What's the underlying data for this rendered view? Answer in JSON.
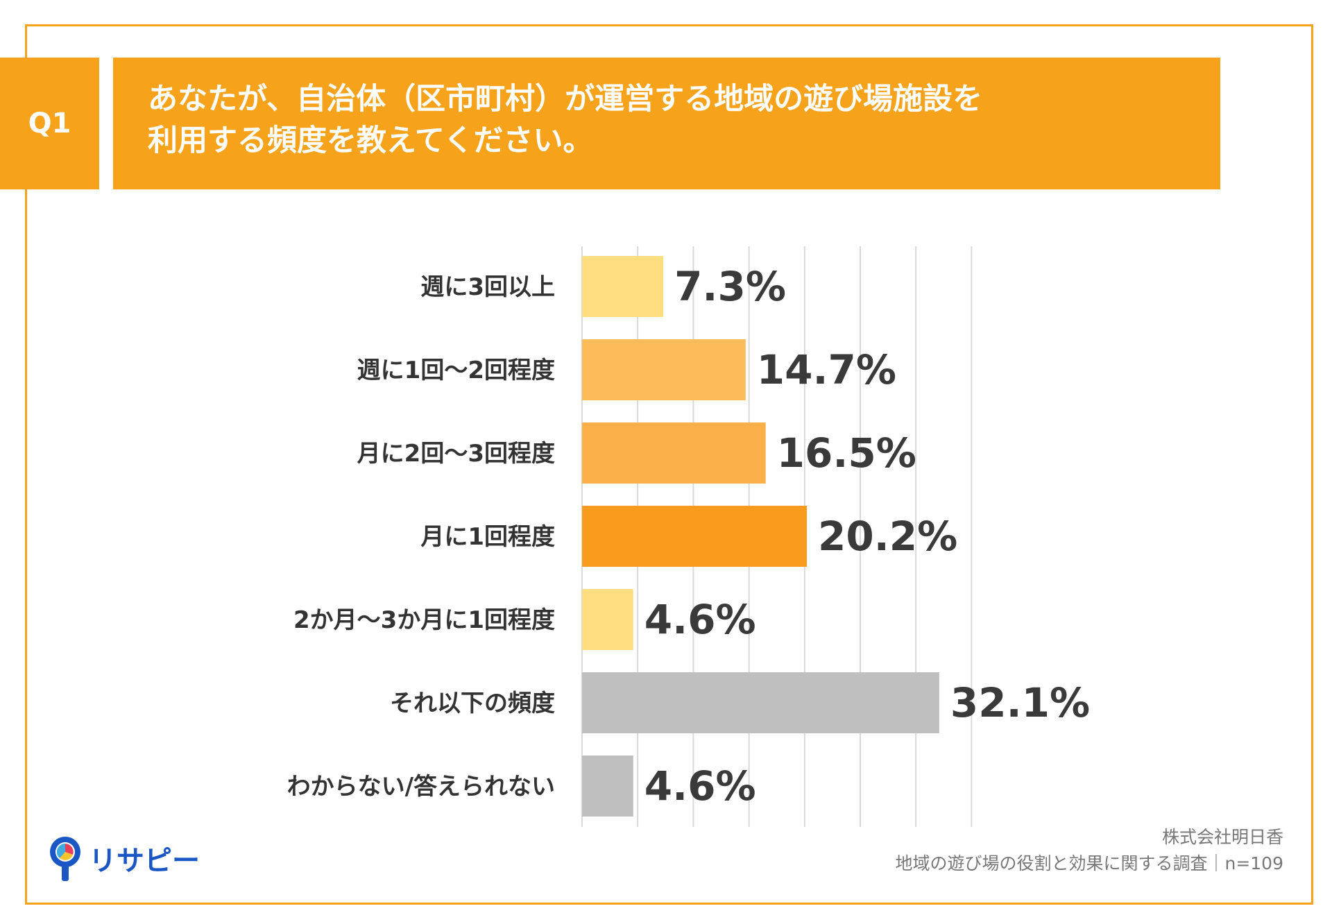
{
  "question": {
    "badge": "Q1",
    "line1": "あなたが、自治体（区市町村）が運営する地域の遊び場施設を",
    "line2": "利用する頻度を教えてください。"
  },
  "chart_data": {
    "type": "bar",
    "orientation": "horizontal",
    "categories": [
      "週に3回以上",
      "週に1回〜2回程度",
      "月に2回〜3回程度",
      "月に1回程度",
      "2か月〜3か月に1回程度",
      "それ以下の頻度",
      "わからない/答えられない"
    ],
    "values": [
      7.3,
      14.7,
      16.5,
      20.2,
      4.6,
      32.1,
      4.6
    ],
    "value_labels": [
      "7.3%",
      "14.7%",
      "16.5%",
      "20.2%",
      "4.6%",
      "32.1%",
      "4.6%"
    ],
    "colors": [
      "#fede7f",
      "#fdbb5a",
      "#fcb04a",
      "#f99b1c",
      "#fede7f",
      "#bfbfbf",
      "#bfbfbf"
    ],
    "xlim": [
      0,
      35
    ],
    "grid": true,
    "unit": "%"
  },
  "footer": {
    "company": "株式会社明日香",
    "survey": "地域の遊び場の役割と効果に関する調査｜n=109"
  },
  "logo": {
    "text": "リサピー"
  }
}
